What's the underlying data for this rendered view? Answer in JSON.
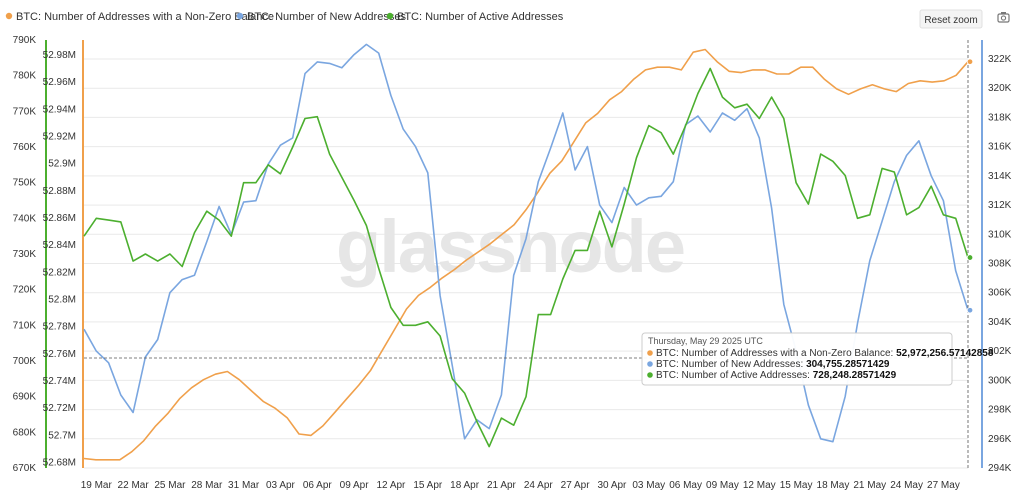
{
  "watermark": "glassnode",
  "toolbar": {
    "reset_zoom_label": "Reset zoom",
    "camera_icon": "camera-icon"
  },
  "colors": {
    "orange": "#f0a04b",
    "blue": "#7aa6e0",
    "green": "#4caf2f",
    "grid": "#e9e9e9"
  },
  "tooltip": {
    "date": "Thursday, May 29 2025 UTC",
    "rows": [
      {
        "label": "BTC: Number of Addresses with a Non-Zero Balance: ",
        "value": "52,972,256.57142858",
        "color": "#f0a04b"
      },
      {
        "label": "BTC: Number of New Addresses: ",
        "value": "304,755.28571429",
        "color": "#7aa6e0"
      },
      {
        "label": "BTC: Number of Active Addresses: ",
        "value": "728,248.28571429",
        "color": "#4caf2f"
      }
    ]
  },
  "chart_data": {
    "type": "line",
    "x_labels": [
      "19 Mar",
      "22 Mar",
      "25 Mar",
      "28 Mar",
      "31 Mar",
      "03 Apr",
      "06 Apr",
      "09 Apr",
      "12 Apr",
      "15 Apr",
      "18 Apr",
      "21 Apr",
      "24 Apr",
      "27 Apr",
      "30 Apr",
      "03 May",
      "06 May",
      "09 May",
      "12 May",
      "15 May",
      "18 May",
      "21 May",
      "24 May",
      "27 May"
    ],
    "x_range": [
      "2025-03-18",
      "2025-05-29"
    ],
    "legend_position": "top-left",
    "series": [
      {
        "name": "BTC: Number of Addresses with a Non-Zero Balance",
        "color": "#f0a04b",
        "axis": "left-inner",
        "ylim": [
          52.676,
          52.991
        ],
        "unit": "M",
        "values": [
          52.683,
          52.682,
          52.682,
          52.682,
          52.688,
          52.696,
          52.707,
          52.716,
          52.727,
          52.735,
          52.741,
          52.745,
          52.747,
          52.741,
          52.733,
          52.725,
          52.72,
          52.713,
          52.701,
          52.7,
          52.707,
          52.717,
          52.727,
          52.737,
          52.748,
          52.763,
          52.778,
          52.793,
          52.803,
          52.809,
          52.816,
          52.822,
          52.829,
          52.835,
          52.841,
          52.848,
          52.855,
          52.866,
          52.879,
          52.893,
          52.902,
          52.916,
          52.93,
          52.937,
          52.947,
          52.953,
          52.962,
          52.969,
          52.971,
          52.971,
          52.969,
          52.982,
          52.984,
          52.975,
          52.968,
          52.967,
          52.969,
          52.969,
          52.966,
          52.966,
          52.971,
          52.971,
          52.962,
          52.955,
          52.951,
          52.955,
          52.958,
          52.955,
          52.953,
          52.959,
          52.961,
          52.96,
          52.961,
          52.965,
          52.975
        ]
      },
      {
        "name": "BTC: Number of New Addresses",
        "color": "#7aa6e0",
        "axis": "right",
        "ylim": [
          294000,
          323300
        ],
        "unit": "K",
        "values": [
          303500,
          302000,
          301200,
          299000,
          297800,
          301600,
          302800,
          306000,
          306900,
          307200,
          309500,
          311900,
          310000,
          312200,
          312300,
          314800,
          316100,
          316600,
          321000,
          321800,
          321700,
          321400,
          322300,
          323000,
          322400,
          319500,
          317200,
          316000,
          314200,
          305800,
          301000,
          296000,
          297300,
          296700,
          299000,
          307200,
          309700,
          313600,
          315900,
          318300,
          314400,
          316000,
          312000,
          310800,
          313200,
          312000,
          312500,
          312600,
          313600,
          317500,
          318100,
          317000,
          318300,
          317800,
          318600,
          316600,
          311800,
          305200,
          302000,
          298300,
          296000,
          295800,
          298900,
          303900,
          308200,
          310900,
          313600,
          315400,
          316400,
          314000,
          312300,
          307500,
          304800
        ]
      },
      {
        "name": "BTC: Number of Active Addresses",
        "color": "#4caf2f",
        "axis": "left-outer",
        "ylim": [
          670000,
          790000
        ],
        "unit": "K",
        "values": [
          735000,
          740000,
          739500,
          739000,
          728000,
          730000,
          728000,
          730000,
          726500,
          736000,
          742000,
          739500,
          735000,
          750000,
          750000,
          755000,
          752500,
          760000,
          768000,
          768500,
          758000,
          751500,
          745000,
          738000,
          726000,
          715000,
          710000,
          710000,
          711000,
          707000,
          695000,
          691000,
          683000,
          676000,
          684000,
          682000,
          690000,
          713000,
          713000,
          723000,
          731000,
          731000,
          742000,
          732000,
          744000,
          757000,
          766000,
          764000,
          758000,
          766000,
          775000,
          782000,
          774000,
          771000,
          772000,
          768000,
          774000,
          768000,
          750000,
          744000,
          758000,
          756000,
          752000,
          740000,
          741000,
          754000,
          753000,
          741000,
          743000,
          749000,
          741000,
          740000,
          729000
        ]
      }
    ],
    "left_outer_ticks": [
      "670K",
      "680K",
      "690K",
      "700K",
      "710K",
      "720K",
      "730K",
      "740K",
      "750K",
      "760K",
      "770K",
      "780K",
      "790K"
    ],
    "left_inner_ticks": [
      "52.68M",
      "52.7M",
      "52.72M",
      "52.74M",
      "52.76M",
      "52.78M",
      "52.8M",
      "52.82M",
      "52.84M",
      "52.86M",
      "52.88M",
      "52.9M",
      "52.92M",
      "52.94M",
      "52.96M",
      "52.98M"
    ],
    "right_ticks": [
      "294K",
      "296K",
      "298K",
      "300K",
      "302K",
      "304K",
      "306K",
      "308K",
      "310K",
      "312K",
      "314K",
      "316K",
      "318K",
      "320K",
      "322K"
    ]
  }
}
